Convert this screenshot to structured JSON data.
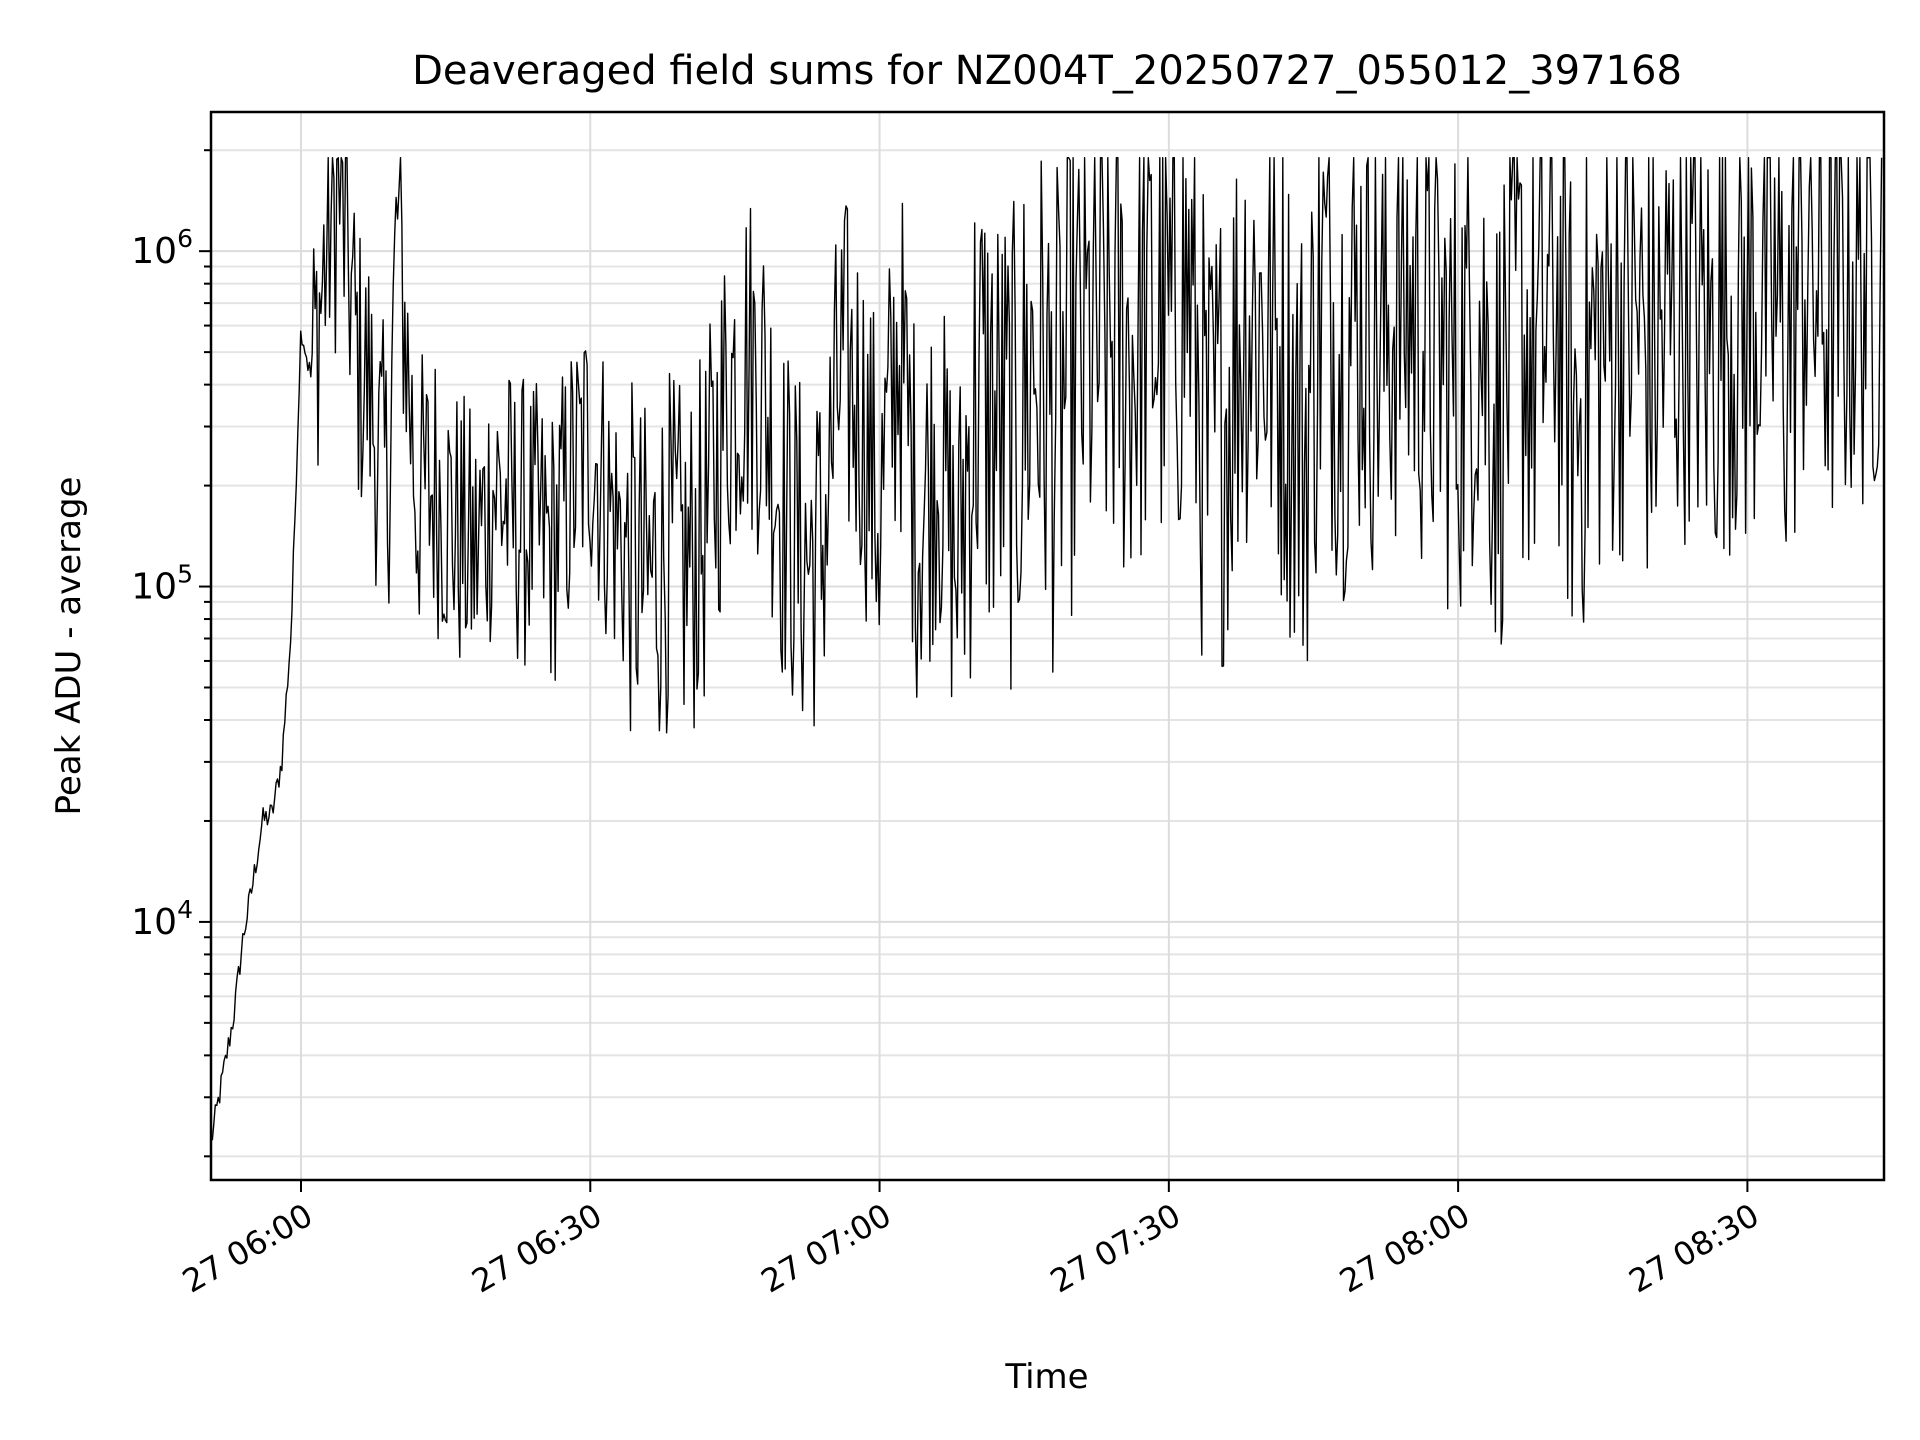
{
  "chart_data": {
    "type": "line",
    "title": "Deaveraged field sums for NZ004T_20250727_055012_397168",
    "xlabel": "Time",
    "ylabel": "Peak ADU - average",
    "yscale": "log",
    "ylim": [
      1700,
      2600000
    ],
    "xlim": [
      "2025-07-27 05:50:40",
      "2025-07-27 08:44:10"
    ],
    "grid": true,
    "x_ticks": [
      {
        "time": "2025-07-27 06:00",
        "label": "27 06:00"
      },
      {
        "time": "2025-07-27 06:30",
        "label": "27 06:30"
      },
      {
        "time": "2025-07-27 07:00",
        "label": "27 07:00"
      },
      {
        "time": "2025-07-27 07:30",
        "label": "27 07:30"
      },
      {
        "time": "2025-07-27 08:00",
        "label": "27 08:00"
      },
      {
        "time": "2025-07-27 08:30",
        "label": "27 08:30"
      }
    ],
    "y_ticks": [
      {
        "value": 10000,
        "base": "10",
        "exp": "4"
      },
      {
        "value": 100000,
        "base": "10",
        "exp": "5"
      },
      {
        "value": 1000000,
        "base": "10",
        "exp": "6"
      }
    ],
    "series": [
      {
        "color": "#000000",
        "x": [
          "2025-07-27 05:50:40",
          "2025-07-27 05:52:00",
          "2025-07-27 05:53:00",
          "2025-07-27 05:54:00",
          "2025-07-27 05:55:00",
          "2025-07-27 05:56:00",
          "2025-07-27 05:57:00",
          "2025-07-27 05:58:00",
          "2025-07-27 05:59:00",
          "2025-07-27 06:00:00",
          "2025-07-27 06:01:00",
          "2025-07-27 06:02:00",
          "2025-07-27 06:03:00",
          "2025-07-27 06:04:00",
          "2025-07-27 06:05:00",
          "2025-07-27 06:06:00",
          "2025-07-27 06:07:00",
          "2025-07-27 06:08:00",
          "2025-07-27 06:09:00",
          "2025-07-27 06:10:00",
          "2025-07-27 06:12:00",
          "2025-07-27 06:14:00",
          "2025-07-27 06:16:00",
          "2025-07-27 06:18:00",
          "2025-07-27 06:20:00",
          "2025-07-27 06:22:00",
          "2025-07-27 06:24:00",
          "2025-07-27 06:26:00",
          "2025-07-27 06:28:00",
          "2025-07-27 06:30:00",
          "2025-07-27 06:32:00",
          "2025-07-27 06:34:00",
          "2025-07-27 06:36:00",
          "2025-07-27 06:38:00",
          "2025-07-27 06:40:00",
          "2025-07-27 06:42:00",
          "2025-07-27 06:44:00",
          "2025-07-27 06:46:00",
          "2025-07-27 06:48:00",
          "2025-07-27 06:50:00",
          "2025-07-27 06:52:00",
          "2025-07-27 06:54:00",
          "2025-07-27 06:56:00",
          "2025-07-27 06:58:00",
          "2025-07-27 07:00:00",
          "2025-07-27 07:02:00",
          "2025-07-27 07:04:00",
          "2025-07-27 07:06:00",
          "2025-07-27 07:08:00",
          "2025-07-27 07:10:00",
          "2025-07-27 07:12:00",
          "2025-07-27 07:14:00",
          "2025-07-27 07:16:00",
          "2025-07-27 07:18:00",
          "2025-07-27 07:20:00",
          "2025-07-27 07:22:00",
          "2025-07-27 07:24:00",
          "2025-07-27 07:26:00",
          "2025-07-27 07:28:00",
          "2025-07-27 07:30:00",
          "2025-07-27 07:32:00",
          "2025-07-27 07:34:00",
          "2025-07-27 07:36:00",
          "2025-07-27 07:38:00",
          "2025-07-27 07:40:00",
          "2025-07-27 07:42:00",
          "2025-07-27 07:44:00",
          "2025-07-27 07:46:00",
          "2025-07-27 07:48:00",
          "2025-07-27 07:50:00",
          "2025-07-27 07:52:00",
          "2025-07-27 07:54:00",
          "2025-07-27 07:56:00",
          "2025-07-27 07:58:00",
          "2025-07-27 08:00:00",
          "2025-07-27 08:02:00",
          "2025-07-27 08:04:00",
          "2025-07-27 08:06:00",
          "2025-07-27 08:08:00",
          "2025-07-27 08:10:00",
          "2025-07-27 08:12:00",
          "2025-07-27 08:14:00",
          "2025-07-27 08:16:00",
          "2025-07-27 08:18:00",
          "2025-07-27 08:20:00",
          "2025-07-27 08:22:00",
          "2025-07-27 08:24:00",
          "2025-07-27 08:26:00",
          "2025-07-27 08:28:00",
          "2025-07-27 08:30:00",
          "2025-07-27 08:32:00",
          "2025-07-27 08:34:00",
          "2025-07-27 08:36:00",
          "2025-07-27 08:38:00",
          "2025-07-27 08:40:00",
          "2025-07-27 08:42:00",
          "2025-07-27 08:44:00"
        ],
        "y": [
          2200,
          3600,
          5200,
          9000,
          13000,
          20000,
          21000,
          30000,
          75000,
          600000,
          420000,
          700000,
          1200000,
          1500000,
          850000,
          450000,
          400000,
          250000,
          200000,
          1300000,
          180000,
          200000,
          150000,
          120000,
          200000,
          160000,
          150000,
          130000,
          200000,
          280000,
          170000,
          120000,
          100000,
          130000,
          110000,
          150000,
          350000,
          500000,
          400000,
          170000,
          120000,
          130000,
          450000,
          350000,
          160000,
          550000,
          150000,
          260000,
          110000,
          400000,
          300000,
          250000,
          500000,
          300000,
          450000,
          500000,
          550000,
          500000,
          650000,
          550000,
          800000,
          220000,
          350000,
          700000,
          600000,
          450000,
          250000,
          800000,
          500000,
          700000,
          500000,
          750000,
          600000,
          500000,
          400000,
          700000,
          300000,
          650000,
          450000,
          800000,
          300000,
          500000,
          600000,
          700000,
          450000,
          600000,
          800000,
          500000,
          700000,
          600000,
          900000,
          500000,
          1000000,
          700000,
          800000,
          900000,
          1000000
        ]
      }
    ]
  }
}
